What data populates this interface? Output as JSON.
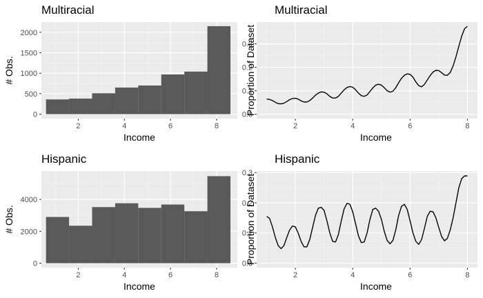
{
  "chart_data": [
    {
      "type": "bar",
      "title": "Multiracial",
      "xlabel": "Income",
      "ylabel": "# Obs.",
      "grid": true,
      "xlim": [
        0.4,
        8.9
      ],
      "ylim": [
        -110,
        2250
      ],
      "xticks": [
        2,
        4,
        6,
        8
      ],
      "yticks": [
        0,
        500,
        1000,
        1500,
        2000
      ],
      "bins": [
        [
          0.6,
          1.6
        ],
        [
          1.6,
          2.6
        ],
        [
          2.6,
          3.6
        ],
        [
          3.6,
          4.6
        ],
        [
          4.6,
          5.6
        ],
        [
          5.6,
          6.6
        ],
        [
          6.6,
          7.6
        ],
        [
          7.6,
          8.6
        ]
      ],
      "values": [
        360,
        380,
        510,
        650,
        700,
        970,
        1040,
        2150
      ]
    },
    {
      "type": "line",
      "title": "Multiracial",
      "xlabel": "Income",
      "ylabel": "Proportion of Dataset",
      "grid": true,
      "xlim": [
        0.65,
        8.35
      ],
      "ylim": [
        -0.019,
        0.393
      ],
      "xticks": [
        2,
        4,
        6,
        8
      ],
      "yticks": [
        0.0,
        0.1,
        0.2,
        0.3
      ],
      "x": [
        1.0,
        1.1,
        1.2,
        1.3,
        1.4,
        1.5,
        1.6,
        1.7,
        1.8,
        1.9,
        2.0,
        2.1,
        2.2,
        2.3,
        2.4,
        2.5,
        2.6,
        2.7,
        2.8,
        2.9,
        3.0,
        3.1,
        3.2,
        3.3,
        3.4,
        3.5,
        3.6,
        3.7,
        3.8,
        3.9,
        4.0,
        4.1,
        4.2,
        4.3,
        4.4,
        4.5,
        4.6,
        4.7,
        4.8,
        4.9,
        5.0,
        5.1,
        5.2,
        5.3,
        5.4,
        5.5,
        5.6,
        5.7,
        5.8,
        5.9,
        6.0,
        6.1,
        6.2,
        6.3,
        6.4,
        6.5,
        6.6,
        6.7,
        6.8,
        6.9,
        7.0,
        7.1,
        7.2,
        7.3,
        7.4,
        7.5,
        7.6,
        7.7,
        7.8,
        7.9,
        8.0
      ],
      "y": [
        0.065,
        0.063,
        0.058,
        0.051,
        0.045,
        0.044,
        0.047,
        0.054,
        0.062,
        0.067,
        0.068,
        0.064,
        0.057,
        0.052,
        0.052,
        0.058,
        0.069,
        0.081,
        0.09,
        0.095,
        0.094,
        0.087,
        0.076,
        0.069,
        0.069,
        0.076,
        0.09,
        0.104,
        0.114,
        0.118,
        0.115,
        0.104,
        0.09,
        0.079,
        0.076,
        0.082,
        0.097,
        0.112,
        0.124,
        0.128,
        0.124,
        0.113,
        0.1,
        0.094,
        0.098,
        0.113,
        0.134,
        0.153,
        0.166,
        0.172,
        0.17,
        0.158,
        0.138,
        0.122,
        0.117,
        0.127,
        0.146,
        0.165,
        0.18,
        0.187,
        0.186,
        0.177,
        0.167,
        0.166,
        0.178,
        0.206,
        0.245,
        0.29,
        0.333,
        0.365,
        0.375
      ]
    },
    {
      "type": "bar",
      "title": "Hispanic",
      "xlabel": "Income",
      "ylabel": "# Obs.",
      "grid": true,
      "xlim": [
        0.4,
        8.9
      ],
      "ylim": [
        -280,
        5780
      ],
      "xticks": [
        2,
        4,
        6,
        8
      ],
      "yticks": [
        0,
        2000,
        4000
      ],
      "bins": [
        [
          0.6,
          1.6
        ],
        [
          1.6,
          2.6
        ],
        [
          2.6,
          3.6
        ],
        [
          3.6,
          4.6
        ],
        [
          4.6,
          5.6
        ],
        [
          5.6,
          6.6
        ],
        [
          6.6,
          7.6
        ],
        [
          7.6,
          8.6
        ]
      ],
      "values": [
        2900,
        2350,
        3520,
        3760,
        3470,
        3680,
        3260,
        5460
      ]
    },
    {
      "type": "line",
      "title": "Hispanic",
      "xlabel": "Income",
      "ylabel": "Proportion of Dataset",
      "grid": true,
      "xlim": [
        0.65,
        8.35
      ],
      "ylim": [
        -0.015,
        0.305
      ],
      "xticks": [
        2,
        4,
        6,
        8
      ],
      "yticks": [
        0.0,
        0.1,
        0.2,
        0.3
      ],
      "x": [
        1.0,
        1.1,
        1.2,
        1.3,
        1.4,
        1.5,
        1.6,
        1.7,
        1.8,
        1.9,
        2.0,
        2.1,
        2.2,
        2.3,
        2.4,
        2.5,
        2.6,
        2.7,
        2.8,
        2.9,
        3.0,
        3.1,
        3.2,
        3.3,
        3.4,
        3.5,
        3.6,
        3.7,
        3.8,
        3.9,
        4.0,
        4.1,
        4.2,
        4.3,
        4.4,
        4.5,
        4.6,
        4.7,
        4.8,
        4.9,
        5.0,
        5.1,
        5.2,
        5.3,
        5.4,
        5.5,
        5.6,
        5.7,
        5.8,
        5.9,
        6.0,
        6.1,
        6.2,
        6.3,
        6.4,
        6.5,
        6.6,
        6.7,
        6.8,
        6.9,
        7.0,
        7.1,
        7.2,
        7.3,
        7.4,
        7.5,
        7.6,
        7.7,
        7.8,
        7.9,
        8.0
      ],
      "y": [
        0.155,
        0.148,
        0.12,
        0.085,
        0.058,
        0.048,
        0.058,
        0.085,
        0.11,
        0.123,
        0.12,
        0.099,
        0.072,
        0.054,
        0.054,
        0.078,
        0.118,
        0.158,
        0.182,
        0.185,
        0.175,
        0.14,
        0.1,
        0.072,
        0.07,
        0.095,
        0.14,
        0.18,
        0.198,
        0.195,
        0.17,
        0.13,
        0.09,
        0.068,
        0.07,
        0.1,
        0.145,
        0.178,
        0.182,
        0.172,
        0.145,
        0.105,
        0.075,
        0.064,
        0.075,
        0.11,
        0.158,
        0.188,
        0.195,
        0.178,
        0.14,
        0.1,
        0.072,
        0.062,
        0.078,
        0.115,
        0.155,
        0.172,
        0.17,
        0.15,
        0.118,
        0.088,
        0.074,
        0.082,
        0.11,
        0.15,
        0.2,
        0.25,
        0.28,
        0.289,
        0.289
      ]
    }
  ]
}
